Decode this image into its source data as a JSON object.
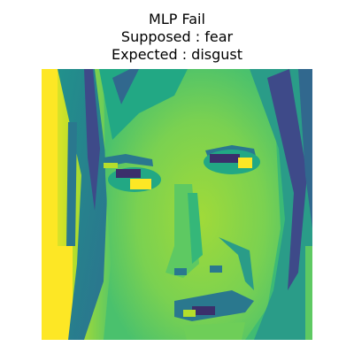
{
  "title": {
    "line1": "MLP Fail",
    "line2": "Supposed : fear",
    "line3": "Expected : disgust"
  },
  "image": {
    "description_icon": "face-image",
    "colormap": "viridis",
    "colors": {
      "dark_purple": "#3b2f6b",
      "indigo": "#3e4a89",
      "blue": "#31688e",
      "teal": "#21918c",
      "green": "#35b779",
      "lime": "#8fd744",
      "yellow": "#fde725"
    }
  }
}
